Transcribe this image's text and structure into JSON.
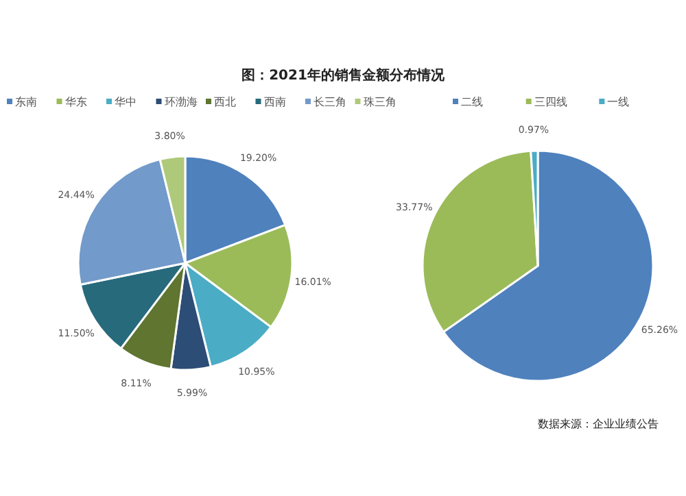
{
  "chart_data": [
    {
      "type": "pie",
      "title": "图：2021年的销售金额分布情况",
      "categories": [
        "东南",
        "华东",
        "华中",
        "环渤海",
        "西北",
        "西南",
        "长三角",
        "珠三角"
      ],
      "values": [
        19.2,
        16.01,
        10.95,
        5.99,
        8.11,
        11.5,
        24.44,
        3.8
      ],
      "value_labels": [
        "19.20%",
        "16.01%",
        "10.95%",
        "5.99%",
        "8.11%",
        "11.50%",
        "24.44%",
        "3.80%"
      ],
      "colors": [
        "#4f81bd",
        "#9bbb59",
        "#4bacc6",
        "#2c4d75",
        "#5f7530",
        "#276a7c",
        "#729aca",
        "#afc97a"
      ],
      "legend": "top"
    },
    {
      "type": "pie",
      "categories": [
        "二线",
        "三四线",
        "一线"
      ],
      "values": [
        65.26,
        33.77,
        0.97
      ],
      "value_labels": [
        "65.26%",
        "33.77%",
        "0.97%"
      ],
      "colors": [
        "#4f81bd",
        "#9bbb59",
        "#4bacc6"
      ],
      "legend": "top",
      "annotations": [
        "数据来源：企业业绩公告"
      ]
    }
  ]
}
